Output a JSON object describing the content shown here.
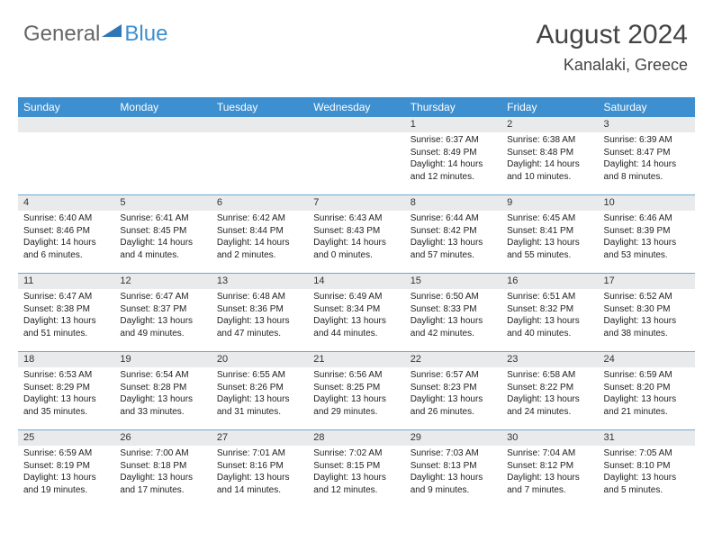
{
  "logo": {
    "word1": "General",
    "word2": "Blue"
  },
  "title": "August 2024",
  "subtitle": "Kanalaki, Greece",
  "colors": {
    "header_bg": "#3d8fcf",
    "daynum_bg": "#e9eaeb",
    "row_divider": "#6da8d6",
    "text": "#222222",
    "title_text": "#444444"
  },
  "weekdays": [
    "Sunday",
    "Monday",
    "Tuesday",
    "Wednesday",
    "Thursday",
    "Friday",
    "Saturday"
  ],
  "weeks": [
    [
      {
        "day": "",
        "sunrise": "",
        "sunset": "",
        "daylight": ""
      },
      {
        "day": "",
        "sunrise": "",
        "sunset": "",
        "daylight": ""
      },
      {
        "day": "",
        "sunrise": "",
        "sunset": "",
        "daylight": ""
      },
      {
        "day": "",
        "sunrise": "",
        "sunset": "",
        "daylight": ""
      },
      {
        "day": "1",
        "sunrise": "Sunrise: 6:37 AM",
        "sunset": "Sunset: 8:49 PM",
        "daylight": "Daylight: 14 hours and 12 minutes."
      },
      {
        "day": "2",
        "sunrise": "Sunrise: 6:38 AM",
        "sunset": "Sunset: 8:48 PM",
        "daylight": "Daylight: 14 hours and 10 minutes."
      },
      {
        "day": "3",
        "sunrise": "Sunrise: 6:39 AM",
        "sunset": "Sunset: 8:47 PM",
        "daylight": "Daylight: 14 hours and 8 minutes."
      }
    ],
    [
      {
        "day": "4",
        "sunrise": "Sunrise: 6:40 AM",
        "sunset": "Sunset: 8:46 PM",
        "daylight": "Daylight: 14 hours and 6 minutes."
      },
      {
        "day": "5",
        "sunrise": "Sunrise: 6:41 AM",
        "sunset": "Sunset: 8:45 PM",
        "daylight": "Daylight: 14 hours and 4 minutes."
      },
      {
        "day": "6",
        "sunrise": "Sunrise: 6:42 AM",
        "sunset": "Sunset: 8:44 PM",
        "daylight": "Daylight: 14 hours and 2 minutes."
      },
      {
        "day": "7",
        "sunrise": "Sunrise: 6:43 AM",
        "sunset": "Sunset: 8:43 PM",
        "daylight": "Daylight: 14 hours and 0 minutes."
      },
      {
        "day": "8",
        "sunrise": "Sunrise: 6:44 AM",
        "sunset": "Sunset: 8:42 PM",
        "daylight": "Daylight: 13 hours and 57 minutes."
      },
      {
        "day": "9",
        "sunrise": "Sunrise: 6:45 AM",
        "sunset": "Sunset: 8:41 PM",
        "daylight": "Daylight: 13 hours and 55 minutes."
      },
      {
        "day": "10",
        "sunrise": "Sunrise: 6:46 AM",
        "sunset": "Sunset: 8:39 PM",
        "daylight": "Daylight: 13 hours and 53 minutes."
      }
    ],
    [
      {
        "day": "11",
        "sunrise": "Sunrise: 6:47 AM",
        "sunset": "Sunset: 8:38 PM",
        "daylight": "Daylight: 13 hours and 51 minutes."
      },
      {
        "day": "12",
        "sunrise": "Sunrise: 6:47 AM",
        "sunset": "Sunset: 8:37 PM",
        "daylight": "Daylight: 13 hours and 49 minutes."
      },
      {
        "day": "13",
        "sunrise": "Sunrise: 6:48 AM",
        "sunset": "Sunset: 8:36 PM",
        "daylight": "Daylight: 13 hours and 47 minutes."
      },
      {
        "day": "14",
        "sunrise": "Sunrise: 6:49 AM",
        "sunset": "Sunset: 8:34 PM",
        "daylight": "Daylight: 13 hours and 44 minutes."
      },
      {
        "day": "15",
        "sunrise": "Sunrise: 6:50 AM",
        "sunset": "Sunset: 8:33 PM",
        "daylight": "Daylight: 13 hours and 42 minutes."
      },
      {
        "day": "16",
        "sunrise": "Sunrise: 6:51 AM",
        "sunset": "Sunset: 8:32 PM",
        "daylight": "Daylight: 13 hours and 40 minutes."
      },
      {
        "day": "17",
        "sunrise": "Sunrise: 6:52 AM",
        "sunset": "Sunset: 8:30 PM",
        "daylight": "Daylight: 13 hours and 38 minutes."
      }
    ],
    [
      {
        "day": "18",
        "sunrise": "Sunrise: 6:53 AM",
        "sunset": "Sunset: 8:29 PM",
        "daylight": "Daylight: 13 hours and 35 minutes."
      },
      {
        "day": "19",
        "sunrise": "Sunrise: 6:54 AM",
        "sunset": "Sunset: 8:28 PM",
        "daylight": "Daylight: 13 hours and 33 minutes."
      },
      {
        "day": "20",
        "sunrise": "Sunrise: 6:55 AM",
        "sunset": "Sunset: 8:26 PM",
        "daylight": "Daylight: 13 hours and 31 minutes."
      },
      {
        "day": "21",
        "sunrise": "Sunrise: 6:56 AM",
        "sunset": "Sunset: 8:25 PM",
        "daylight": "Daylight: 13 hours and 29 minutes."
      },
      {
        "day": "22",
        "sunrise": "Sunrise: 6:57 AM",
        "sunset": "Sunset: 8:23 PM",
        "daylight": "Daylight: 13 hours and 26 minutes."
      },
      {
        "day": "23",
        "sunrise": "Sunrise: 6:58 AM",
        "sunset": "Sunset: 8:22 PM",
        "daylight": "Daylight: 13 hours and 24 minutes."
      },
      {
        "day": "24",
        "sunrise": "Sunrise: 6:59 AM",
        "sunset": "Sunset: 8:20 PM",
        "daylight": "Daylight: 13 hours and 21 minutes."
      }
    ],
    [
      {
        "day": "25",
        "sunrise": "Sunrise: 6:59 AM",
        "sunset": "Sunset: 8:19 PM",
        "daylight": "Daylight: 13 hours and 19 minutes."
      },
      {
        "day": "26",
        "sunrise": "Sunrise: 7:00 AM",
        "sunset": "Sunset: 8:18 PM",
        "daylight": "Daylight: 13 hours and 17 minutes."
      },
      {
        "day": "27",
        "sunrise": "Sunrise: 7:01 AM",
        "sunset": "Sunset: 8:16 PM",
        "daylight": "Daylight: 13 hours and 14 minutes."
      },
      {
        "day": "28",
        "sunrise": "Sunrise: 7:02 AM",
        "sunset": "Sunset: 8:15 PM",
        "daylight": "Daylight: 13 hours and 12 minutes."
      },
      {
        "day": "29",
        "sunrise": "Sunrise: 7:03 AM",
        "sunset": "Sunset: 8:13 PM",
        "daylight": "Daylight: 13 hours and 9 minutes."
      },
      {
        "day": "30",
        "sunrise": "Sunrise: 7:04 AM",
        "sunset": "Sunset: 8:12 PM",
        "daylight": "Daylight: 13 hours and 7 minutes."
      },
      {
        "day": "31",
        "sunrise": "Sunrise: 7:05 AM",
        "sunset": "Sunset: 8:10 PM",
        "daylight": "Daylight: 13 hours and 5 minutes."
      }
    ]
  ]
}
